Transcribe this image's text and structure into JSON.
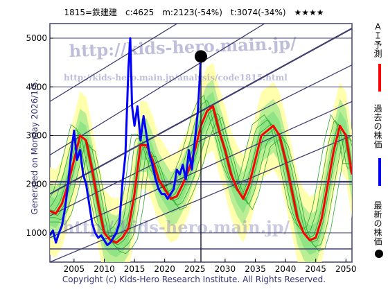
{
  "header": {
    "code": "1815=鉄建建",
    "current": "c:4625",
    "mean": "m:2123(-54%)",
    "target": "t:3074(-34%)",
    "rating": "★★★★"
  },
  "side_text": "Generated on Monday 2026/1/5.",
  "footer": "Copyright (c) Kids-Hero Research Institute. All Rights Reserved.",
  "watermarks": {
    "url_main": "http://kids-hero.main.jp/",
    "url_analysis": "http://kids-hero.main.jp/analysis/code1815.html",
    "url_bottom": "http://kids-hero.main.jp/"
  },
  "legend": {
    "ai_label": "ＡＩ予測",
    "past_label": "過去の株価",
    "latest_label": "最新の株価"
  },
  "colors": {
    "ai": "#ff0000",
    "past": "#0000ff",
    "latest": "#000000",
    "band_green": "#7fe07f",
    "band_yellow": "#ffff99",
    "grid": "#404070"
  },
  "chart_data": {
    "type": "line",
    "x_ticks": [
      2005,
      2010,
      2015,
      2020,
      2025,
      2030,
      2035,
      2040,
      2045,
      2050
    ],
    "y_ticks": [
      1000,
      2000,
      3000,
      4000,
      5000
    ],
    "xlim": [
      2001,
      2051
    ],
    "ylim": [
      400,
      5300
    ],
    "latest": {
      "x": 2026.0,
      "y": 4625
    },
    "series": [
      {
        "name": "過去の株価",
        "x": [
          2001.0,
          2001.5,
          2002.0,
          2002.5,
          2003.0,
          2003.5,
          2004.0,
          2004.5,
          2005.0,
          2005.5,
          2006.0,
          2006.5,
          2007.0,
          2007.5,
          2008.0,
          2008.5,
          2009.0,
          2009.5,
          2010.0,
          2010.5,
          2011.0,
          2011.5,
          2012.0,
          2012.5,
          2013.0,
          2013.5,
          2014.0,
          2014.3,
          2014.6,
          2015.0,
          2015.5,
          2016.0,
          2016.5,
          2017.0,
          2017.5,
          2018.0,
          2018.5,
          2019.0,
          2019.5,
          2020.0,
          2020.5,
          2021.0,
          2021.5,
          2022.0,
          2022.5,
          2023.0,
          2023.5,
          2024.0,
          2024.5,
          2025.0,
          2025.5,
          2026.0
        ],
        "y": [
          950,
          1050,
          800,
          1000,
          1150,
          1500,
          2000,
          2600,
          3100,
          2500,
          2700,
          2200,
          2000,
          1600,
          1200,
          1000,
          900,
          950,
          850,
          750,
          800,
          900,
          1000,
          1200,
          2000,
          2600,
          4400,
          5000,
          3600,
          3200,
          3600,
          2900,
          3400,
          3000,
          2600,
          2400,
          2100,
          1900,
          1800,
          1800,
          1700,
          1800,
          1900,
          2300,
          2200,
          2400,
          2100,
          2700,
          2300,
          2900,
          3500,
          4625
        ]
      },
      {
        "name": "ＡＩ予測",
        "x": [
          2001.0,
          2002.0,
          2003.0,
          2004.0,
          2005.0,
          2006.0,
          2007.0,
          2008.0,
          2009.0,
          2010.0,
          2011.0,
          2012.0,
          2013.0,
          2014.0,
          2015.0,
          2016.0,
          2017.0,
          2018.0,
          2019.0,
          2020.0,
          2021.0,
          2022.0,
          2023.0,
          2024.0,
          2025.0,
          2026.0,
          2027.0,
          2028.0,
          2029.0,
          2030.0,
          2031.0,
          2032.0,
          2033.0,
          2034.0,
          2035.0,
          2036.0,
          2037.0,
          2038.0,
          2039.0,
          2040.0,
          2041.0,
          2042.0,
          2043.0,
          2044.0,
          2045.0,
          2046.0,
          2047.0,
          2048.0,
          2049.0,
          2050.0,
          2051.0
        ],
        "y": [
          1450,
          1400,
          1600,
          2000,
          2500,
          3000,
          2900,
          2300,
          1600,
          1000,
          850,
          800,
          900,
          1100,
          1800,
          2800,
          2800,
          2500,
          2100,
          1900,
          1700,
          1750,
          2000,
          2300,
          2700,
          3200,
          3500,
          3600,
          3100,
          2700,
          2200,
          1900,
          1700,
          2000,
          2500,
          3000,
          3100,
          3200,
          3000,
          2500,
          1900,
          1300,
          1000,
          850,
          900,
          1300,
          2000,
          2700,
          3200,
          3000,
          2200
        ]
      }
    ]
  }
}
